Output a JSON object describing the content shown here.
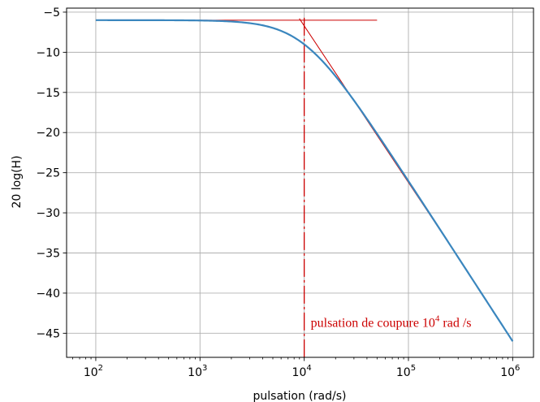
{
  "chart_data": {
    "type": "line",
    "xscale": "log",
    "xlabel": "pulsation (rad/s)",
    "ylabel": "20 log(H)",
    "xlim": [
      100,
      1000000
    ],
    "ylim": [
      -48,
      -4.5
    ],
    "grid": true,
    "x_ticks": [
      {
        "value": 100,
        "base": "10",
        "exp": "2"
      },
      {
        "value": 1000,
        "base": "10",
        "exp": "3"
      },
      {
        "value": 10000,
        "base": "10",
        "exp": "4"
      },
      {
        "value": 100000,
        "base": "10",
        "exp": "5"
      },
      {
        "value": 1000000,
        "base": "10",
        "exp": "6"
      }
    ],
    "y_ticks": [
      {
        "value": -5,
        "label": "−5"
      },
      {
        "value": -10,
        "label": "−10"
      },
      {
        "value": -15,
        "label": "−15"
      },
      {
        "value": -20,
        "label": "−20"
      },
      {
        "value": -25,
        "label": "−25"
      },
      {
        "value": -30,
        "label": "−30"
      },
      {
        "value": -35,
        "label": "−35"
      },
      {
        "value": -40,
        "label": "−40"
      },
      {
        "value": -45,
        "label": "−45"
      }
    ],
    "series": [
      {
        "color": "#3a86be",
        "model": "first-order low-pass",
        "gain_db": -6,
        "cutoff": 10000,
        "x_range": [
          100,
          1000000
        ]
      }
    ],
    "annotations": {
      "color": "#cc0000",
      "horizontal_asymptote": {
        "y": -6,
        "x_start": 100,
        "x_end": 50000
      },
      "oblique_asymptote": {
        "x_start": 10000,
        "y_start": -6,
        "x_end": 300000,
        "slope_db_per_decade": -20
      },
      "cutoff_line": {
        "x": 10000
      },
      "cutoff_text": {
        "text": "pulsation de coupure 10",
        "sup": "4",
        "suffix": " rad /s",
        "x": 10000,
        "y": -44.2
      }
    }
  }
}
